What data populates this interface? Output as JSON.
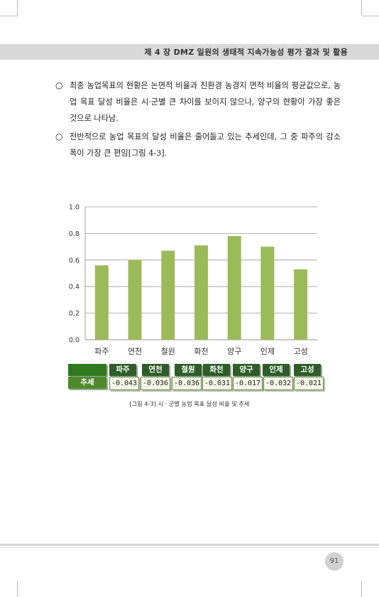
{
  "header": {
    "title": "제 4 장   DMZ 일원의 생태적 지속가능성 평가 결과 및 활용"
  },
  "paragraphs": [
    "최종 농업목표의 현황은 논면적 비율과 친환경 농경지 면적 비율의 평균값으로, 농업 목표 달성 비율은 시·군별 큰 차이를 보이지 않으나, 양구의 현황이 가장 좋은 것으로 나타남.",
    "전반적으로 농업 목표의 달성 비율은 줄어들고 있는 추세인데, 그 중 파주의 감소폭이 가장 큰 편임[그림 4-3]."
  ],
  "bullet_symbol": "○",
  "chart_data": {
    "type": "bar",
    "categories": [
      "파주",
      "연천",
      "철원",
      "화천",
      "양구",
      "인제",
      "고성"
    ],
    "values": [
      0.56,
      0.6,
      0.67,
      0.71,
      0.78,
      0.7,
      0.53
    ],
    "ylim": [
      0.0,
      1.0
    ],
    "yticks": [
      "0.0",
      "0.2",
      "0.4",
      "0.6",
      "0.8",
      "1.0"
    ],
    "grid": true,
    "bar_color": "#9bbb59",
    "title": "",
    "xlabel": "",
    "ylabel": ""
  },
  "trend_table": {
    "row_label": "추세",
    "headers": [
      "파주",
      "연천",
      "철원",
      "화천",
      "양구",
      "인제",
      "고성"
    ],
    "values": [
      "-0.043",
      "-0.036",
      "-0.036",
      "-0.031",
      "-0.017",
      "-0.032",
      "-0.021"
    ]
  },
  "caption": "[그림 4-3] 시 · 군별 농업 목표 달성 비율 및 추세",
  "page_number": "91",
  "colors": {
    "header_dark_green": "#2f5d2a",
    "label_green": "#4f8a2a",
    "bar_green": "#9bbb59"
  }
}
